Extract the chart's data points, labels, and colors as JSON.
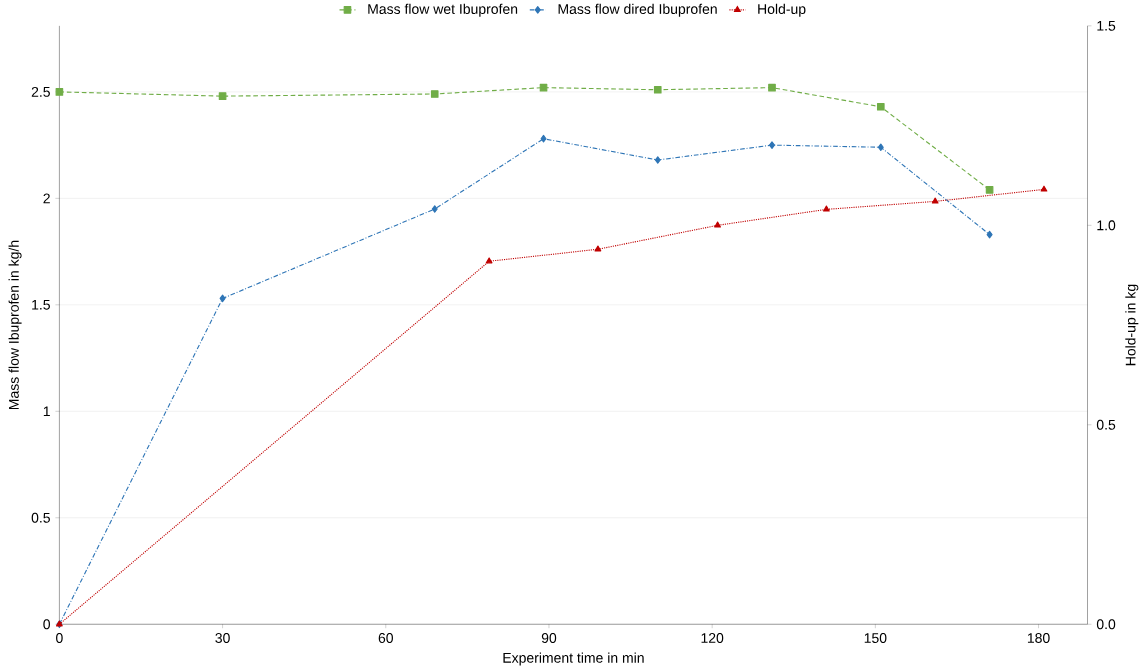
{
  "chart_data": {
    "type": "line",
    "xlabel": "Experiment time in min",
    "ylabel": "Mass flow Ibuprofen in  kg/h",
    "y2label": "Hold-up in kg",
    "xlim": [
      0,
      189
    ],
    "xticks": [
      0,
      30,
      60,
      90,
      120,
      150,
      180
    ],
    "ylim": [
      0,
      2.81
    ],
    "yticks": [
      0,
      0.5,
      1,
      1.5,
      2,
      2.5
    ],
    "y2lim": [
      0,
      1.5
    ],
    "y2ticks": [
      {
        "value": 0,
        "label": "0.0"
      },
      {
        "value": 0.5,
        "label": "0.5"
      },
      {
        "value": 1,
        "label": "1.0"
      },
      {
        "value": 1.5,
        "label": "1.5"
      }
    ],
    "grid": "y",
    "legend": "top",
    "series": [
      {
        "name": "Mass flow wet Ibuprofen",
        "color": "#70ad47",
        "marker": "square",
        "line_style": "dashed",
        "x": [
          0,
          30,
          69,
          89,
          110,
          131,
          151,
          171
        ],
        "values": [
          2.5,
          2.48,
          2.49,
          2.52,
          2.51,
          2.52,
          2.43,
          2.04
        ]
      },
      {
        "name": "Mass flow dired Ibuprofen",
        "color": "#2e75b6",
        "marker": "diamond",
        "line_style": "dashdot",
        "x": [
          0,
          30,
          69,
          89,
          110,
          131,
          151,
          171
        ],
        "values": [
          0,
          1.53,
          1.95,
          2.28,
          2.18,
          2.25,
          2.24,
          1.83
        ]
      },
      {
        "name": "Hold-up",
        "color": "#c00000",
        "marker": "triangle",
        "line_style": "dotted",
        "axis": "y2",
        "x": [
          0,
          79,
          99,
          121,
          141,
          161,
          181
        ],
        "values": [
          0,
          0.91,
          0.94,
          1.0,
          1.04,
          1.06,
          1.09
        ]
      }
    ]
  }
}
